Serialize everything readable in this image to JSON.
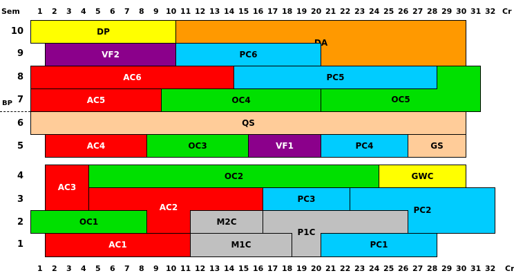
{
  "top_axis": {
    "sem_label": "Sem",
    "cr_label": "Cr",
    "numbers": [
      "1",
      "2",
      "3",
      "4",
      "5",
      "6",
      "7",
      "8",
      "9",
      "10",
      "11",
      "12",
      "13",
      "14",
      "15",
      "16",
      "17",
      "18",
      "19",
      "20",
      "21",
      "22",
      "23",
      "24",
      "25",
      "26",
      "27",
      "28",
      "29",
      "30",
      "31",
      "32"
    ]
  },
  "bottom_axis": {
    "cr_label": "Cr",
    "numbers": [
      "1",
      "2",
      "3",
      "4",
      "5",
      "6",
      "7",
      "8",
      "9",
      "10",
      "11",
      "12",
      "13",
      "14",
      "15",
      "16",
      "17",
      "18",
      "19",
      "20",
      "21",
      "22",
      "23",
      "24",
      "25",
      "26",
      "27",
      "28",
      "29",
      "30",
      "31",
      "32"
    ]
  },
  "bp_label": "BP",
  "semesters": [
    "10",
    "9",
    "8",
    "7",
    "6",
    "5",
    "4",
    "3",
    "2",
    "1"
  ],
  "colors": {
    "yellow": "#ffff00",
    "orange": "#ff9900",
    "purple": "#8b008b",
    "cyan": "#00ccff",
    "red": "#ff0000",
    "green": "#00e000",
    "peach": "#ffcc99",
    "gray": "#c0c0c0"
  },
  "blocks": {
    "dp": "DP",
    "da": "DA",
    "vf2": "VF2",
    "pc6": "PC6",
    "ac6": "AC6",
    "pc5": "PC5",
    "ac5": "AC5",
    "oc4": "OC4",
    "oc5": "OC5",
    "qs": "QS",
    "ac4": "AC4",
    "oc3": "OC3",
    "vf1": "VF1",
    "pc4": "PC4",
    "gs": "GS",
    "ac3": "AC3",
    "oc2": "OC2",
    "gwc": "GWC",
    "pc3": "PC3",
    "pc2": "PC2",
    "ac2": "AC2",
    "oc1": "OC1",
    "m2c": "M2C",
    "p1c": "P1C",
    "ac1": "AC1",
    "m1c": "M1C",
    "pc1": "PC1"
  }
}
